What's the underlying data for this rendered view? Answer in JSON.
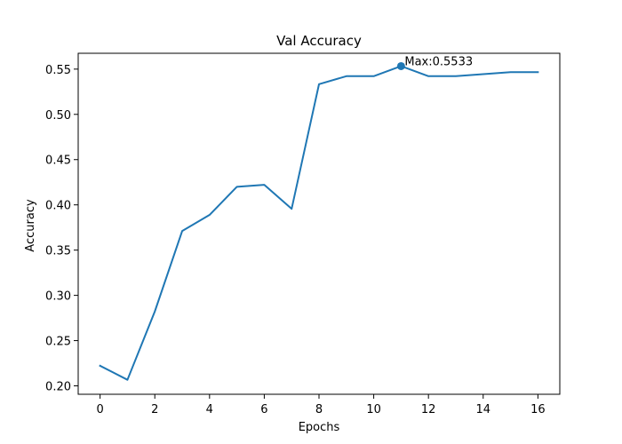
{
  "chart_data": {
    "type": "line",
    "title": "Val Accuracy",
    "xlabel": "Epochs",
    "ylabel": "Accuracy",
    "xlim": [
      -0.8,
      16.8
    ],
    "ylim": [
      0.1907,
      0.5675
    ],
    "x_ticks": [
      0,
      2,
      4,
      6,
      8,
      10,
      12,
      14,
      16
    ],
    "x_tick_labels": [
      "0",
      "2",
      "4",
      "6",
      "8",
      "10",
      "12",
      "14",
      "16"
    ],
    "y_ticks": [
      0.2,
      0.25,
      0.3,
      0.35,
      0.4,
      0.45,
      0.5,
      0.55
    ],
    "y_tick_labels": [
      "0.20",
      "0.25",
      "0.30",
      "0.35",
      "0.40",
      "0.45",
      "0.50",
      "0.55"
    ],
    "grid": false,
    "series": [
      {
        "color": "#1f77b4",
        "x": [
          0,
          1,
          2,
          3,
          4,
          5,
          6,
          7,
          8,
          9,
          10,
          11,
          12,
          13,
          14,
          15,
          16
        ],
        "values": [
          0.2222,
          0.2067,
          0.2822,
          0.3711,
          0.3889,
          0.42,
          0.4222,
          0.3956,
          0.5333,
          0.5422,
          0.5422,
          0.5533,
          0.5422,
          0.5422,
          0.5444,
          0.5467,
          0.5467
        ]
      }
    ],
    "annotation": {
      "x": 11,
      "y": 0.5533,
      "text": "Max:0.5533"
    }
  }
}
